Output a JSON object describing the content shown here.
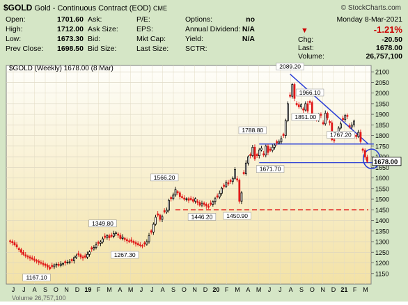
{
  "header": {
    "symbol": "$GOLD",
    "name": "Gold - Continuous Contract (EOD)",
    "exchange": "CME",
    "copyright": "© StockCharts.com",
    "date": "Monday  8-Mar-2021"
  },
  "stats": {
    "col1": [
      {
        "label": "Open:",
        "value": "1701.60"
      },
      {
        "label": "High:",
        "value": "1712.00"
      },
      {
        "label": "Low:",
        "value": "1673.30"
      },
      {
        "label": "Prev Close:",
        "value": "1698.50"
      }
    ],
    "col2": [
      "Ask:",
      "Ask Size:",
      "Bid:",
      "Bid Size:"
    ],
    "col3": [
      "P/E:",
      "EPS:",
      "Mkt Cap:",
      "Last Size:"
    ],
    "col4": [
      {
        "label": "Options:",
        "value": "no"
      },
      {
        "label": "Annual Dividend:",
        "value": "N/A"
      },
      {
        "label": "Yield:",
        "value": "N/A"
      },
      {
        "label": "SCTR:",
        "value": ""
      }
    ],
    "change_pct": "-1.21%",
    "col5": [
      {
        "label": "Chg:",
        "value": "-20.50"
      },
      {
        "label": "Last:",
        "value": "1678.00"
      },
      {
        "label": "Volume:",
        "value": "26,757,100"
      }
    ],
    "down_color": "#cc0000"
  },
  "chart_data": {
    "type": "candlestick",
    "title": "$GOLD (Weekly) 1678.00 (8 Mar)",
    "ylim": [
      1100,
      2130
    ],
    "yticks": [
      1150,
      1200,
      1250,
      1300,
      1350,
      1400,
      1450,
      1500,
      1550,
      1600,
      1650,
      1700,
      1750,
      1800,
      1850,
      1900,
      1950,
      2000,
      2050,
      2100
    ],
    "xlabels": [
      "J",
      "J",
      "A",
      "S",
      "O",
      "N",
      "D",
      "19",
      "F",
      "M",
      "A",
      "M",
      "J",
      "J",
      "A",
      "S",
      "O",
      "N",
      "D",
      "20",
      "F",
      "M",
      "A",
      "M",
      "J",
      "J",
      "A",
      "S",
      "O",
      "N",
      "D",
      "21",
      "F",
      "M"
    ],
    "last_price": "1678.00",
    "closes": [
      1300,
      1295,
      1285,
      1275,
      1262,
      1250,
      1240,
      1232,
      1228,
      1222,
      1218,
      1212,
      1208,
      1202,
      1198,
      1192,
      1188,
      1180,
      1172,
      1182,
      1190,
      1193,
      1188,
      1195,
      1197,
      1200,
      1203,
      1205,
      1210,
      1225,
      1232,
      1238,
      1228,
      1223,
      1227,
      1240,
      1252,
      1265,
      1272,
      1285,
      1292,
      1298,
      1313,
      1320,
      1328,
      1318,
      1325,
      1338,
      1342,
      1330,
      1315,
      1322,
      1310,
      1304,
      1300,
      1302,
      1296,
      1290,
      1285,
      1282,
      1280,
      1288,
      1300,
      1328,
      1345,
      1382,
      1415,
      1425,
      1405,
      1418,
      1440,
      1448,
      1495,
      1502,
      1520,
      1545,
      1530,
      1512,
      1508,
      1500,
      1502,
      1495,
      1498,
      1490,
      1502,
      1485,
      1472,
      1480,
      1476,
      1468,
      1462,
      1476,
      1488,
      1502,
      1510,
      1528,
      1552,
      1560,
      1578,
      1572,
      1583,
      1598,
      1640,
      1590,
      1490,
      1530,
      1620,
      1670,
      1700,
      1705,
      1745,
      1690,
      1705,
      1732,
      1740,
      1708,
      1750,
      1720,
      1730,
      1745,
      1755,
      1765,
      1770,
      1785,
      1800,
      1870,
      1950,
      1985,
      2040,
      1975,
      1945,
      1935,
      1945,
      1920,
      1950,
      1915,
      1955,
      1890,
      1880,
      1875,
      1900,
      1895,
      1855,
      1905,
      1883,
      1860,
      1780,
      1775,
      1800,
      1835,
      1855,
      1875,
      1895,
      1890,
      1840,
      1850,
      1868,
      1795,
      1815,
      1772,
      1730,
      1698,
      1678
    ]
  },
  "annotations": [
    {
      "text": "2089.20",
      "value": 2089.2
    },
    {
      "text": "1966.10",
      "value": 1966.1
    },
    {
      "text": "1851.00",
      "value": 1851.0
    },
    {
      "text": "1788.80",
      "value": 1788.8
    },
    {
      "text": "1767.20",
      "value": 1767.2
    },
    {
      "text": "1671.70",
      "value": 1671.7
    },
    {
      "text": "1566.20",
      "value": 1566.2
    },
    {
      "text": "1446.20",
      "value": 1446.2
    },
    {
      "text": "1450.90",
      "value": 1450.9
    },
    {
      "text": "1349.80",
      "value": 1349.8
    },
    {
      "text": "1267.30",
      "value": 1267.3
    },
    {
      "text": "1167.10",
      "value": 1167.1
    }
  ],
  "levels": [
    {
      "name": "support-1760",
      "value": 1760,
      "color": "#2b3fd6"
    },
    {
      "name": "support-1672",
      "value": 1672,
      "color": "#2b3fd6"
    },
    {
      "name": "support-1450",
      "value": 1450,
      "color": "#e01818"
    }
  ],
  "trendline": {
    "from": 2089.2,
    "to": 1760,
    "color": "#2b3fd6"
  },
  "volume_label": "Volume 26,757,100"
}
